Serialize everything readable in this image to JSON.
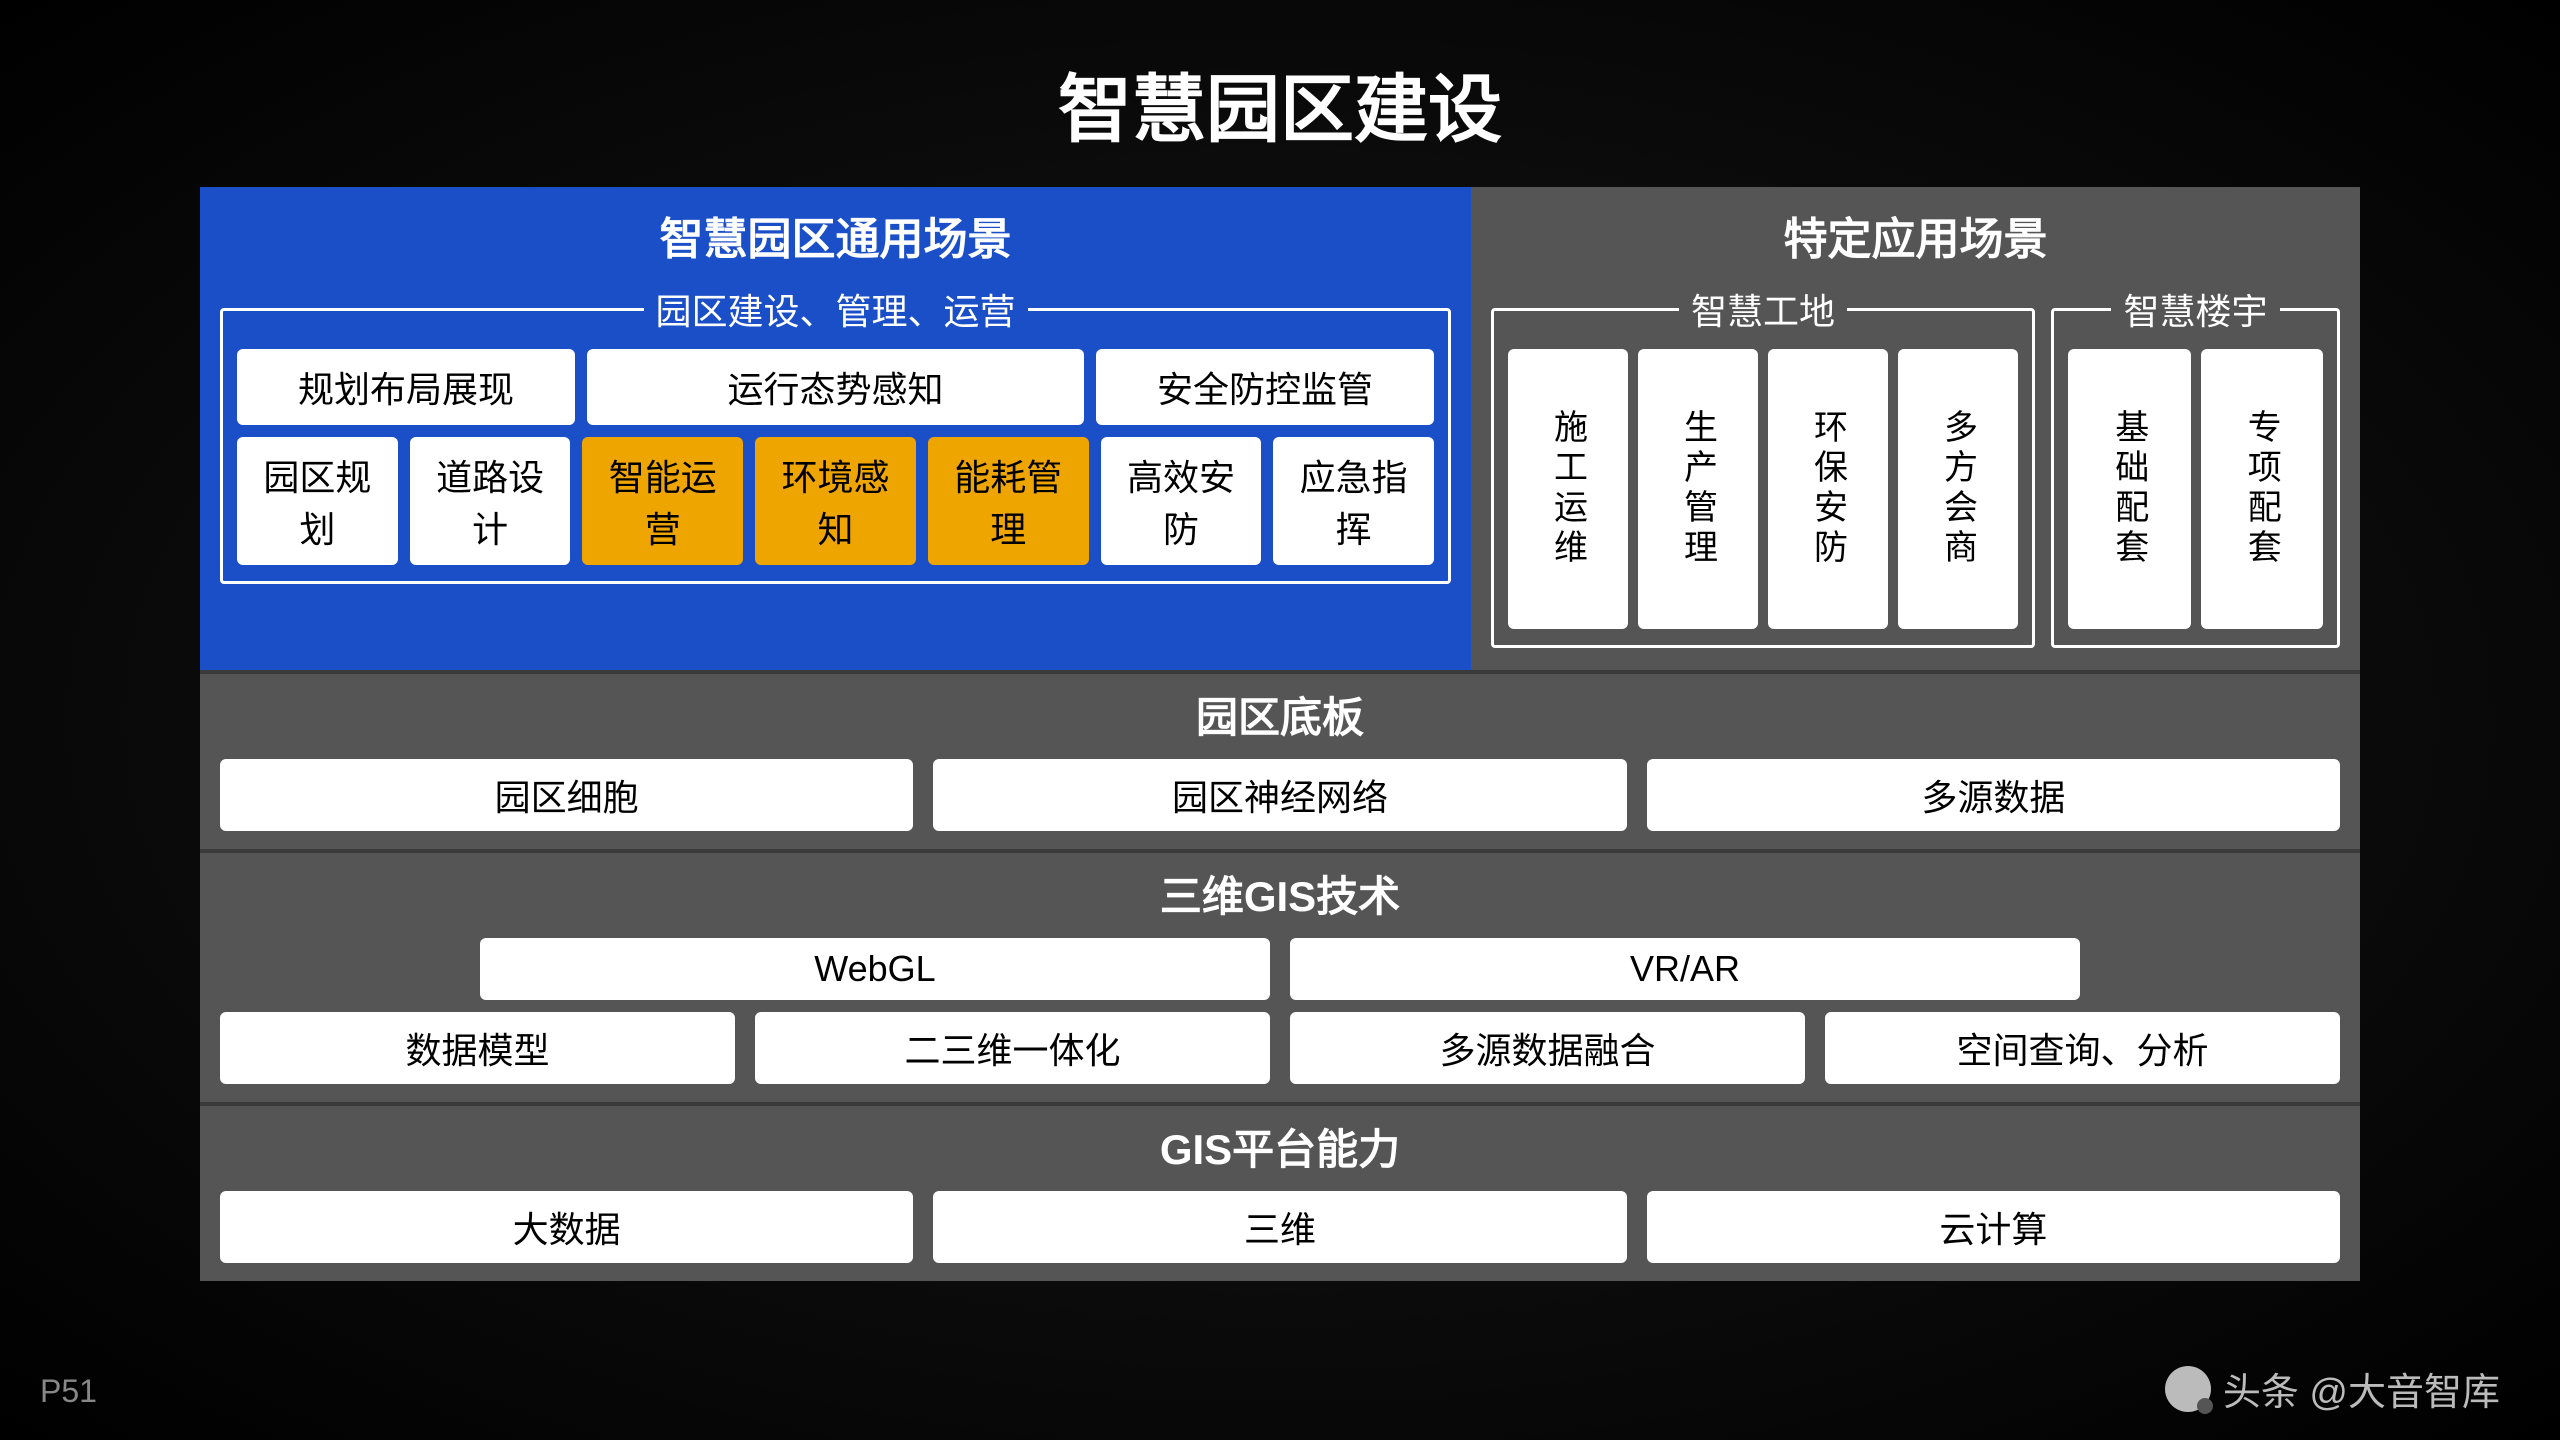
{
  "title": "智慧园区建设",
  "page_number": "P51",
  "watermark": "头条 @大音智库",
  "colors": {
    "background_dark": "#000000",
    "panel_blue": "#1a4fc8",
    "panel_gray": "#555555",
    "tile_white": "#ffffff",
    "tile_orange": "#efa500",
    "text_white": "#ffffff",
    "text_black": "#000000"
  },
  "top_left": {
    "panel_title": "智慧园区通用场景",
    "group_title": "园区建设、管理、运营",
    "row1": [
      "规划布局展现",
      "运行态势感知",
      "安全防控监管"
    ],
    "row1_spans": [
      2,
      3,
      2
    ],
    "row2": [
      {
        "label": "园区规划",
        "color": "white"
      },
      {
        "label": "道路设计",
        "color": "white"
      },
      {
        "label": "智能运营",
        "color": "orange"
      },
      {
        "label": "环境感知",
        "color": "orange"
      },
      {
        "label": "能耗管理",
        "color": "orange"
      },
      {
        "label": "高效安防",
        "color": "white"
      },
      {
        "label": "应急指挥",
        "color": "white"
      }
    ]
  },
  "top_right": {
    "panel_title": "特定应用场景",
    "groups": [
      {
        "title": "智慧工地",
        "items": [
          "施工运维",
          "生产管理",
          "环保安防",
          "多方会商"
        ]
      },
      {
        "title": "智慧楼宇",
        "items": [
          "基础配套",
          "专项配套"
        ]
      }
    ]
  },
  "sections": [
    {
      "title": "园区底板",
      "rows": [
        [
          "园区细胞",
          "园区神经网络",
          "多源数据"
        ]
      ]
    },
    {
      "title": "三维GIS技术",
      "rows": [
        [
          "WebGL",
          "VR/AR"
        ],
        [
          "数据模型",
          "二三维一体化",
          "多源数据融合",
          "空间查询、分析"
        ]
      ],
      "first_row_inset": true
    },
    {
      "title": "GIS平台能力",
      "rows": [
        [
          "大数据",
          "三维",
          "云计算"
        ]
      ]
    }
  ]
}
